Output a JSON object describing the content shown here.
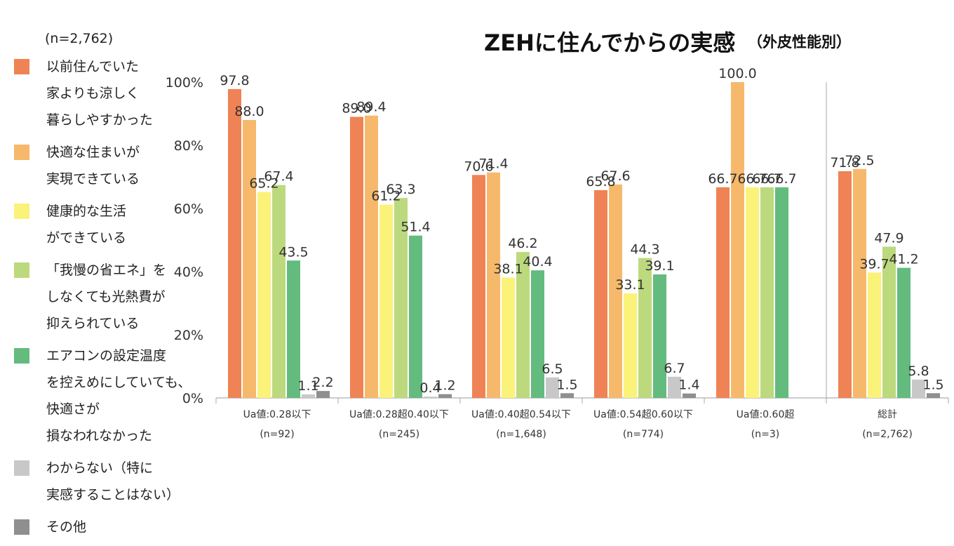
{
  "chart_data": {
    "type": "bar",
    "title": "ZEHに住んでからの実感",
    "subtitle": "（外皮性能別）",
    "sample_size": "(n=2,762)",
    "y_ticks": [
      "0%",
      "20%",
      "40%",
      "60%",
      "80%",
      "100%"
    ],
    "ylim": [
      0,
      100
    ],
    "grid": false,
    "legend_placement": "left",
    "categories": [
      {
        "name": "Ua値:0.28以下",
        "n": "(n=92)"
      },
      {
        "name": "Ua値:0.28超0.40以下",
        "n": "(n=245)"
      },
      {
        "name": "Ua値:0.40超0.54以下",
        "n": "(n=1,648)"
      },
      {
        "name": "Ua値:0.54超0.60以下",
        "n": "(n=774)"
      },
      {
        "name": "Ua値:0.60超",
        "n": "(n=3)"
      },
      {
        "name": "総計",
        "n": "(n=2,762)"
      }
    ],
    "series": [
      {
        "name": "以前住んでいた家よりも涼しく暮らしやすかった",
        "lines": [
          "以前住んでいた",
          "家よりも涼しく",
          "暮らしやすかった"
        ],
        "color": "#ef8355",
        "values": [
          97.8,
          89.0,
          70.6,
          65.8,
          66.7,
          71.8
        ]
      },
      {
        "name": "快適な住まいが実現できている",
        "lines": [
          "快適な住まいが",
          "実現できている"
        ],
        "color": "#f6b96c",
        "values": [
          88.0,
          89.4,
          71.4,
          67.6,
          100.0,
          72.5
        ]
      },
      {
        "name": "健康的な生活ができている",
        "lines": [
          "健康的な生活",
          "ができている"
        ],
        "color": "#fbf27a",
        "values": [
          65.2,
          61.2,
          38.1,
          33.1,
          66.7,
          39.7
        ]
      },
      {
        "name": "「我慢の省エネ」をしなくても光熱費が抑えられている",
        "lines": [
          "「我慢の省エネ」を",
          "しなくても光熱費が",
          "抑えられている"
        ],
        "color": "#bdd97e",
        "values": [
          67.4,
          63.3,
          46.2,
          44.3,
          66.7,
          47.9
        ]
      },
      {
        "name": "エアコンの設定温度を控えめにしていても、快適さが損なわれなかった",
        "lines": [
          "エアコンの設定温度",
          "を控えめにしていても、",
          "快適さが",
          "損なわれなかった"
        ],
        "color": "#63bb7e",
        "values": [
          43.5,
          51.4,
          40.4,
          39.1,
          66.7,
          41.2
        ]
      },
      {
        "name": "わからない（特に実感することはない）",
        "lines": [
          "わからない（特に",
          "実感することはない）"
        ],
        "color": "#c8c8c8",
        "values": [
          1.1,
          0.4,
          6.5,
          6.7,
          null,
          5.8
        ]
      },
      {
        "name": "その他",
        "lines": [
          "その他"
        ],
        "color": "#8f8f8f",
        "values": [
          2.2,
          1.2,
          1.5,
          1.4,
          null,
          1.5
        ]
      }
    ]
  }
}
